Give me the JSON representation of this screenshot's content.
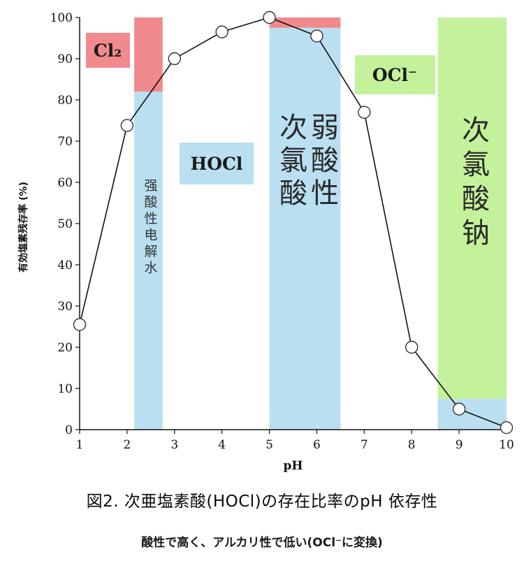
{
  "chart_data": {
    "type": "line",
    "xlabel": "pH",
    "ylabel": "有効塩素残存率 (%)",
    "x_ticks": [
      1,
      2,
      3,
      4,
      5,
      6,
      7,
      8,
      9,
      10
    ],
    "y_ticks": [
      0,
      10,
      20,
      30,
      40,
      50,
      60,
      70,
      80,
      90,
      100
    ],
    "xlim": [
      1,
      10
    ],
    "ylim": [
      0,
      100
    ],
    "grid": false,
    "series": [
      {
        "x": [
          1,
          2,
          3,
          4,
          5,
          6,
          7,
          8,
          9,
          10
        ],
        "values": [
          25.5,
          73.8,
          90,
          96.5,
          100,
          95.5,
          77,
          20,
          5,
          0.5
        ]
      }
    ],
    "bands": [
      {
        "x": [
          2.15,
          2.75
        ],
        "lower": [
          0,
          82
        ],
        "upper": [
          82,
          100
        ],
        "lower_color": "#b9dff1",
        "upper_color": "#f08a8c"
      },
      {
        "x": [
          5.0,
          6.5
        ],
        "lower": [
          0,
          97.5
        ],
        "upper": [
          97.5,
          100
        ],
        "lower_color": "#b9dff1",
        "upper_color": "#f08a8c"
      },
      {
        "x": [
          8.55,
          10.0
        ],
        "lower": [
          0,
          7.5
        ],
        "upper": [
          7.5,
          100
        ],
        "lower_color": "#b9dff1",
        "upper_color": "#c4f29a"
      }
    ],
    "annotations": {
      "cl2": {
        "text": "Cl₂",
        "bg": "#f08a8c"
      },
      "hocl": {
        "text": "HOCl",
        "bg": "#b9dff1"
      },
      "ocl": {
        "text": "OCl⁻",
        "bg": "#c4f29a"
      },
      "band1_vertical": "强酸性电解水",
      "band2_vertical_lines": [
        "弱酸性",
        "次氯酸"
      ],
      "band3_vertical": "次氯酸钠"
    }
  },
  "caption": {
    "title": "図2. 次亜塩素酸(HOCl)の存在比率のpH 依存性",
    "subtitle": "酸性で高く、アルカリ性で低い(OCl⁻に変換)"
  },
  "colors": {
    "line": "#111111",
    "marker_fill": "#ffffff",
    "axis": "#111111"
  }
}
